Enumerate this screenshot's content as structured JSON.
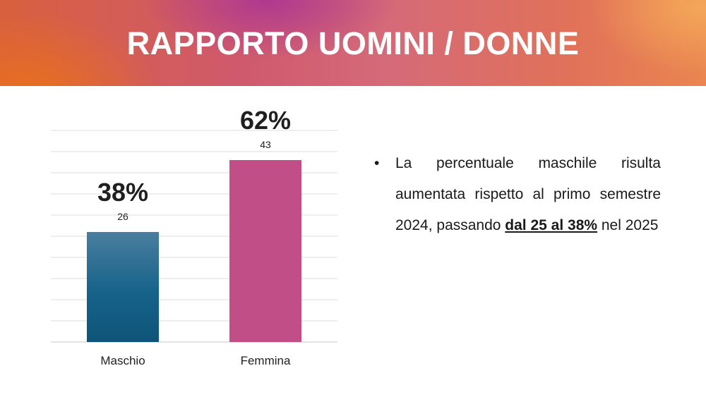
{
  "slide": {
    "title": "RAPPORTO UOMINI / DONNE"
  },
  "chart_data": {
    "type": "bar",
    "categories": [
      "Maschio",
      "Femmina"
    ],
    "values": [
      26,
      43
    ],
    "percent_labels": [
      "38%",
      "62%"
    ],
    "ylim": [
      0,
      50
    ],
    "grid": true,
    "colors": [
      "#1e6088",
      "#c24e88"
    ]
  },
  "notes": {
    "bullet": "•",
    "text_before": "La percentuale maschile risulta aumentata rispetto al primo semestre 2024, passando ",
    "highlight": "dal 25 al 38%",
    "text_after": " nel 2025"
  }
}
